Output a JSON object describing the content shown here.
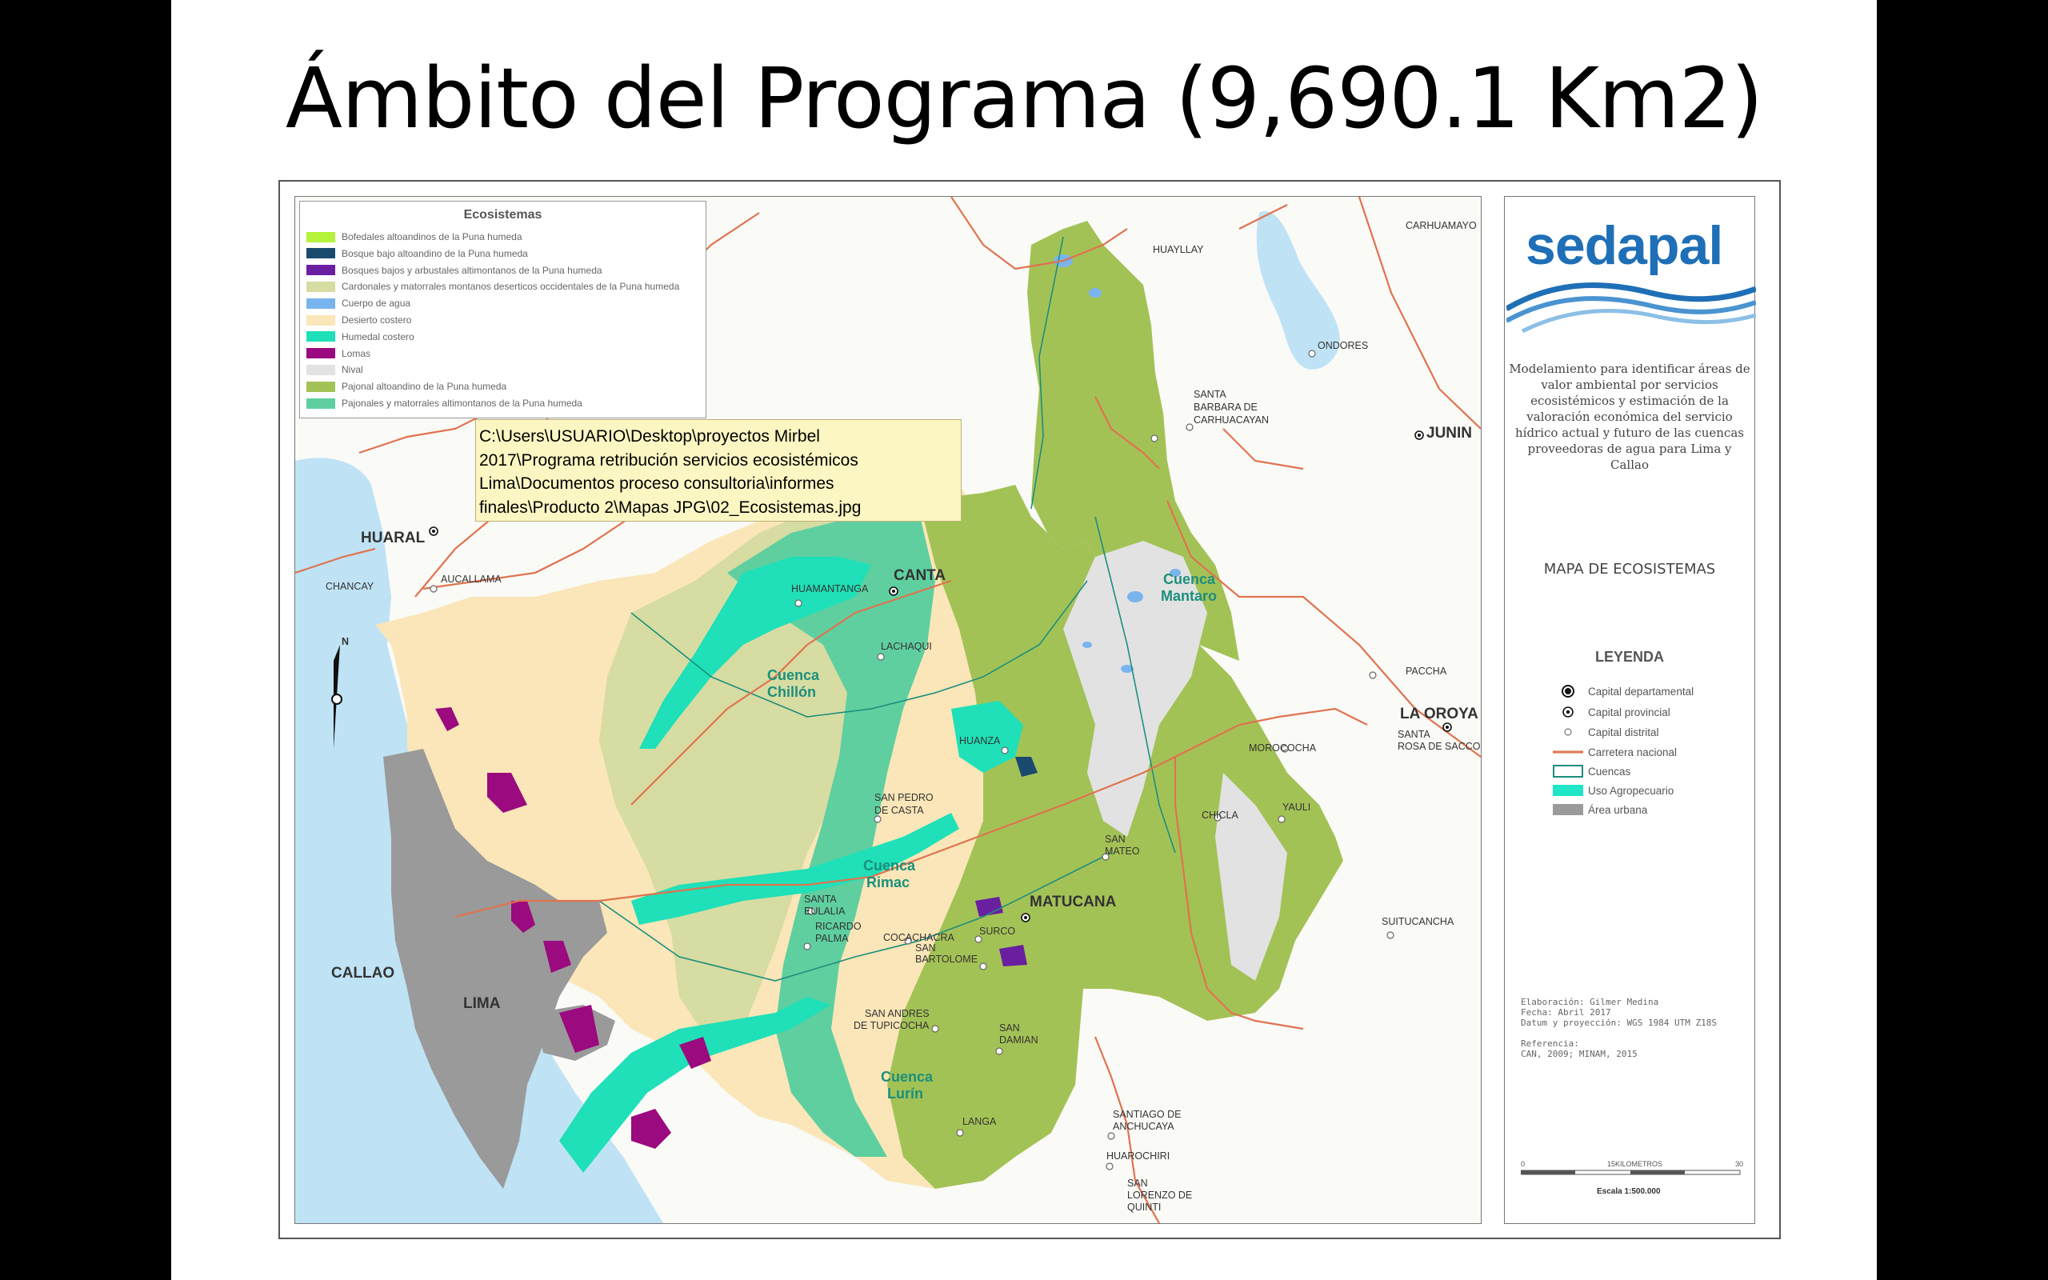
{
  "slide": {
    "title": "Ámbito del Programa (9,690.1 Km2)"
  },
  "legend": {
    "title": "Ecosistemas",
    "items": [
      {
        "label": "Bofedales altoandinos de la Puna humeda",
        "color": "#b5f23a"
      },
      {
        "label": "Bosque bajo altoandino de la Puna humeda",
        "color": "#1a4a6e"
      },
      {
        "label": "Bosques bajos y arbustales altimontanos de la Puna humeda",
        "color": "#6a1fa0"
      },
      {
        "label": "Cardonales y matorrales montanos deserticos occidentales de la Puna humeda",
        "color": "#d6dca2"
      },
      {
        "label": "Cuerpo de agua",
        "color": "#7ab4ef"
      },
      {
        "label": "Desierto costero",
        "color": "#fae6b8"
      },
      {
        "label": "Humedal costero",
        "color": "#1fe0b8"
      },
      {
        "label": "Lomas",
        "color": "#9b0a7e"
      },
      {
        "label": "Nival",
        "color": "#e2e2e2"
      },
      {
        "label": "Pajonal altoandino de la Puna humeda",
        "color": "#a3c256"
      },
      {
        "label": "Pajonales y matorrales altimontanos de la Puna humeda",
        "color": "#5fcfa0"
      }
    ]
  },
  "tooltip": {
    "lines": [
      "C:\\Users\\USUARIO\\Desktop\\proyectos Mirbel",
      "2017\\Programa retribución servicios ecosistémicos",
      "Lima\\Documentos proceso consultoria\\informes",
      "finales\\Producto 2\\Mapas JPG\\02_Ecosistemas.jpg"
    ]
  },
  "places": {
    "huayllay": "HUAYLLAY",
    "carhuamayo": "CARHUAMAYO",
    "ondores": "ONDORES",
    "santa_barbara_1": "SANTA",
    "santa_barbara_2": "BARBARA DE",
    "santa_barbara_3": "CARHUACAYAN",
    "junin": "JUNIN",
    "huaral": "HUARAL",
    "chancay": "CHANCAY",
    "aucallama": "AUCALLAMA",
    "huamantanga": "HUAMANTANGA",
    "canta": "CANTA",
    "lachaqui": "LACHAQUI",
    "huanza": "HUANZA",
    "pacha": "PACCHA",
    "la_oroya": "LA OROYA",
    "santa_rosa_1": "SANTA",
    "santa_rosa_2": "ROSA DE SACCO",
    "morococha": "MOROCOCHA",
    "yauli": "YAULI",
    "chicla": "CHICLA",
    "san_mateo_1": "SAN",
    "san_mateo_2": "MATEO",
    "san_pedro_1": "SAN PEDRO",
    "san_pedro_2": "DE CASTA",
    "matucana": "MATUCANA",
    "santa_eulalia_1": "SANTA",
    "santa_eulalia_2": "EULALIA",
    "ricardo_palma_1": "RICARDO",
    "ricardo_palma_2": "PALMA",
    "cocachacra": "COCACHACRA",
    "surco": "SURCO",
    "san_bartolome_1": "SAN",
    "san_bartolome_2": "BARTOLOME",
    "suitucancha": "SUITUCANCHA",
    "callao": "CALLAO",
    "lima": "LIMA",
    "san_andres_1": "SAN ANDRES",
    "san_andres_2": "DE TUPICOCHA",
    "san_damian_1": "SAN",
    "san_damian_2": "DAMIAN",
    "langa": "LANGA",
    "santiago_1": "SANTIAGO DE",
    "santiago_2": "ANCHUCAYA",
    "huarochiri": "HUAROCHIRI",
    "san_lorenzo_1": "SAN",
    "san_lorenzo_2": "LORENZO DE",
    "san_lorenzo_3": "QUINTI"
  },
  "cuencas": {
    "mantaro_1": "Cuenca",
    "mantaro_2": "Mantaro",
    "chillon_1": "Cuenca",
    "chillon_2": "Chillón",
    "rimac_1": "Cuenca",
    "rimac_2": "Rimac",
    "lurin_1": "Cuenca",
    "lurin_2": "Lurín"
  },
  "side": {
    "logo": "sedapal",
    "description": [
      "Modelamiento para identificar áreas de",
      "valor ambiental por servicios",
      "ecosistémicos y estimación de la",
      "valoración económica del servicio",
      "hídrico actual y futuro de las cuencas",
      "proveedoras de agua para Lima y Callao"
    ],
    "map_title": "MAPA DE ECOSISTEMAS",
    "legend_title": "LEYENDA",
    "legend_items": [
      {
        "label": "Capital departamental",
        "icon": "capital-departamental-icon"
      },
      {
        "label": "Capital provincial",
        "icon": "capital-provincial-icon"
      },
      {
        "label": "Capital distrital",
        "icon": "capital-distrital-icon"
      },
      {
        "label": "Carretera nacional",
        "icon": "road-line-icon",
        "color": "#e0734f"
      },
      {
        "label": "Cuencas",
        "icon": "cuenca-outline-icon",
        "color": "#1c8f7c"
      },
      {
        "label": "Uso Agropecuario",
        "icon": "agro-fill-icon",
        "color": "#1fe6c4"
      },
      {
        "label": "Área urbana",
        "icon": "urban-fill-icon",
        "color": "#9a9a9a"
      }
    ],
    "credits": [
      "Elaboración: Gilmer Medina",
      "Fecha: Abril 2017",
      "Datum y proyección: WGS 1984 UTM Z18S",
      "",
      "Referencia:",
      "CAN, 2009; MINAM, 2015"
    ],
    "scale": {
      "zero": "0",
      "mid": "15KILOMETROS",
      "end": "30",
      "label": "Escala  1:500.000"
    }
  }
}
